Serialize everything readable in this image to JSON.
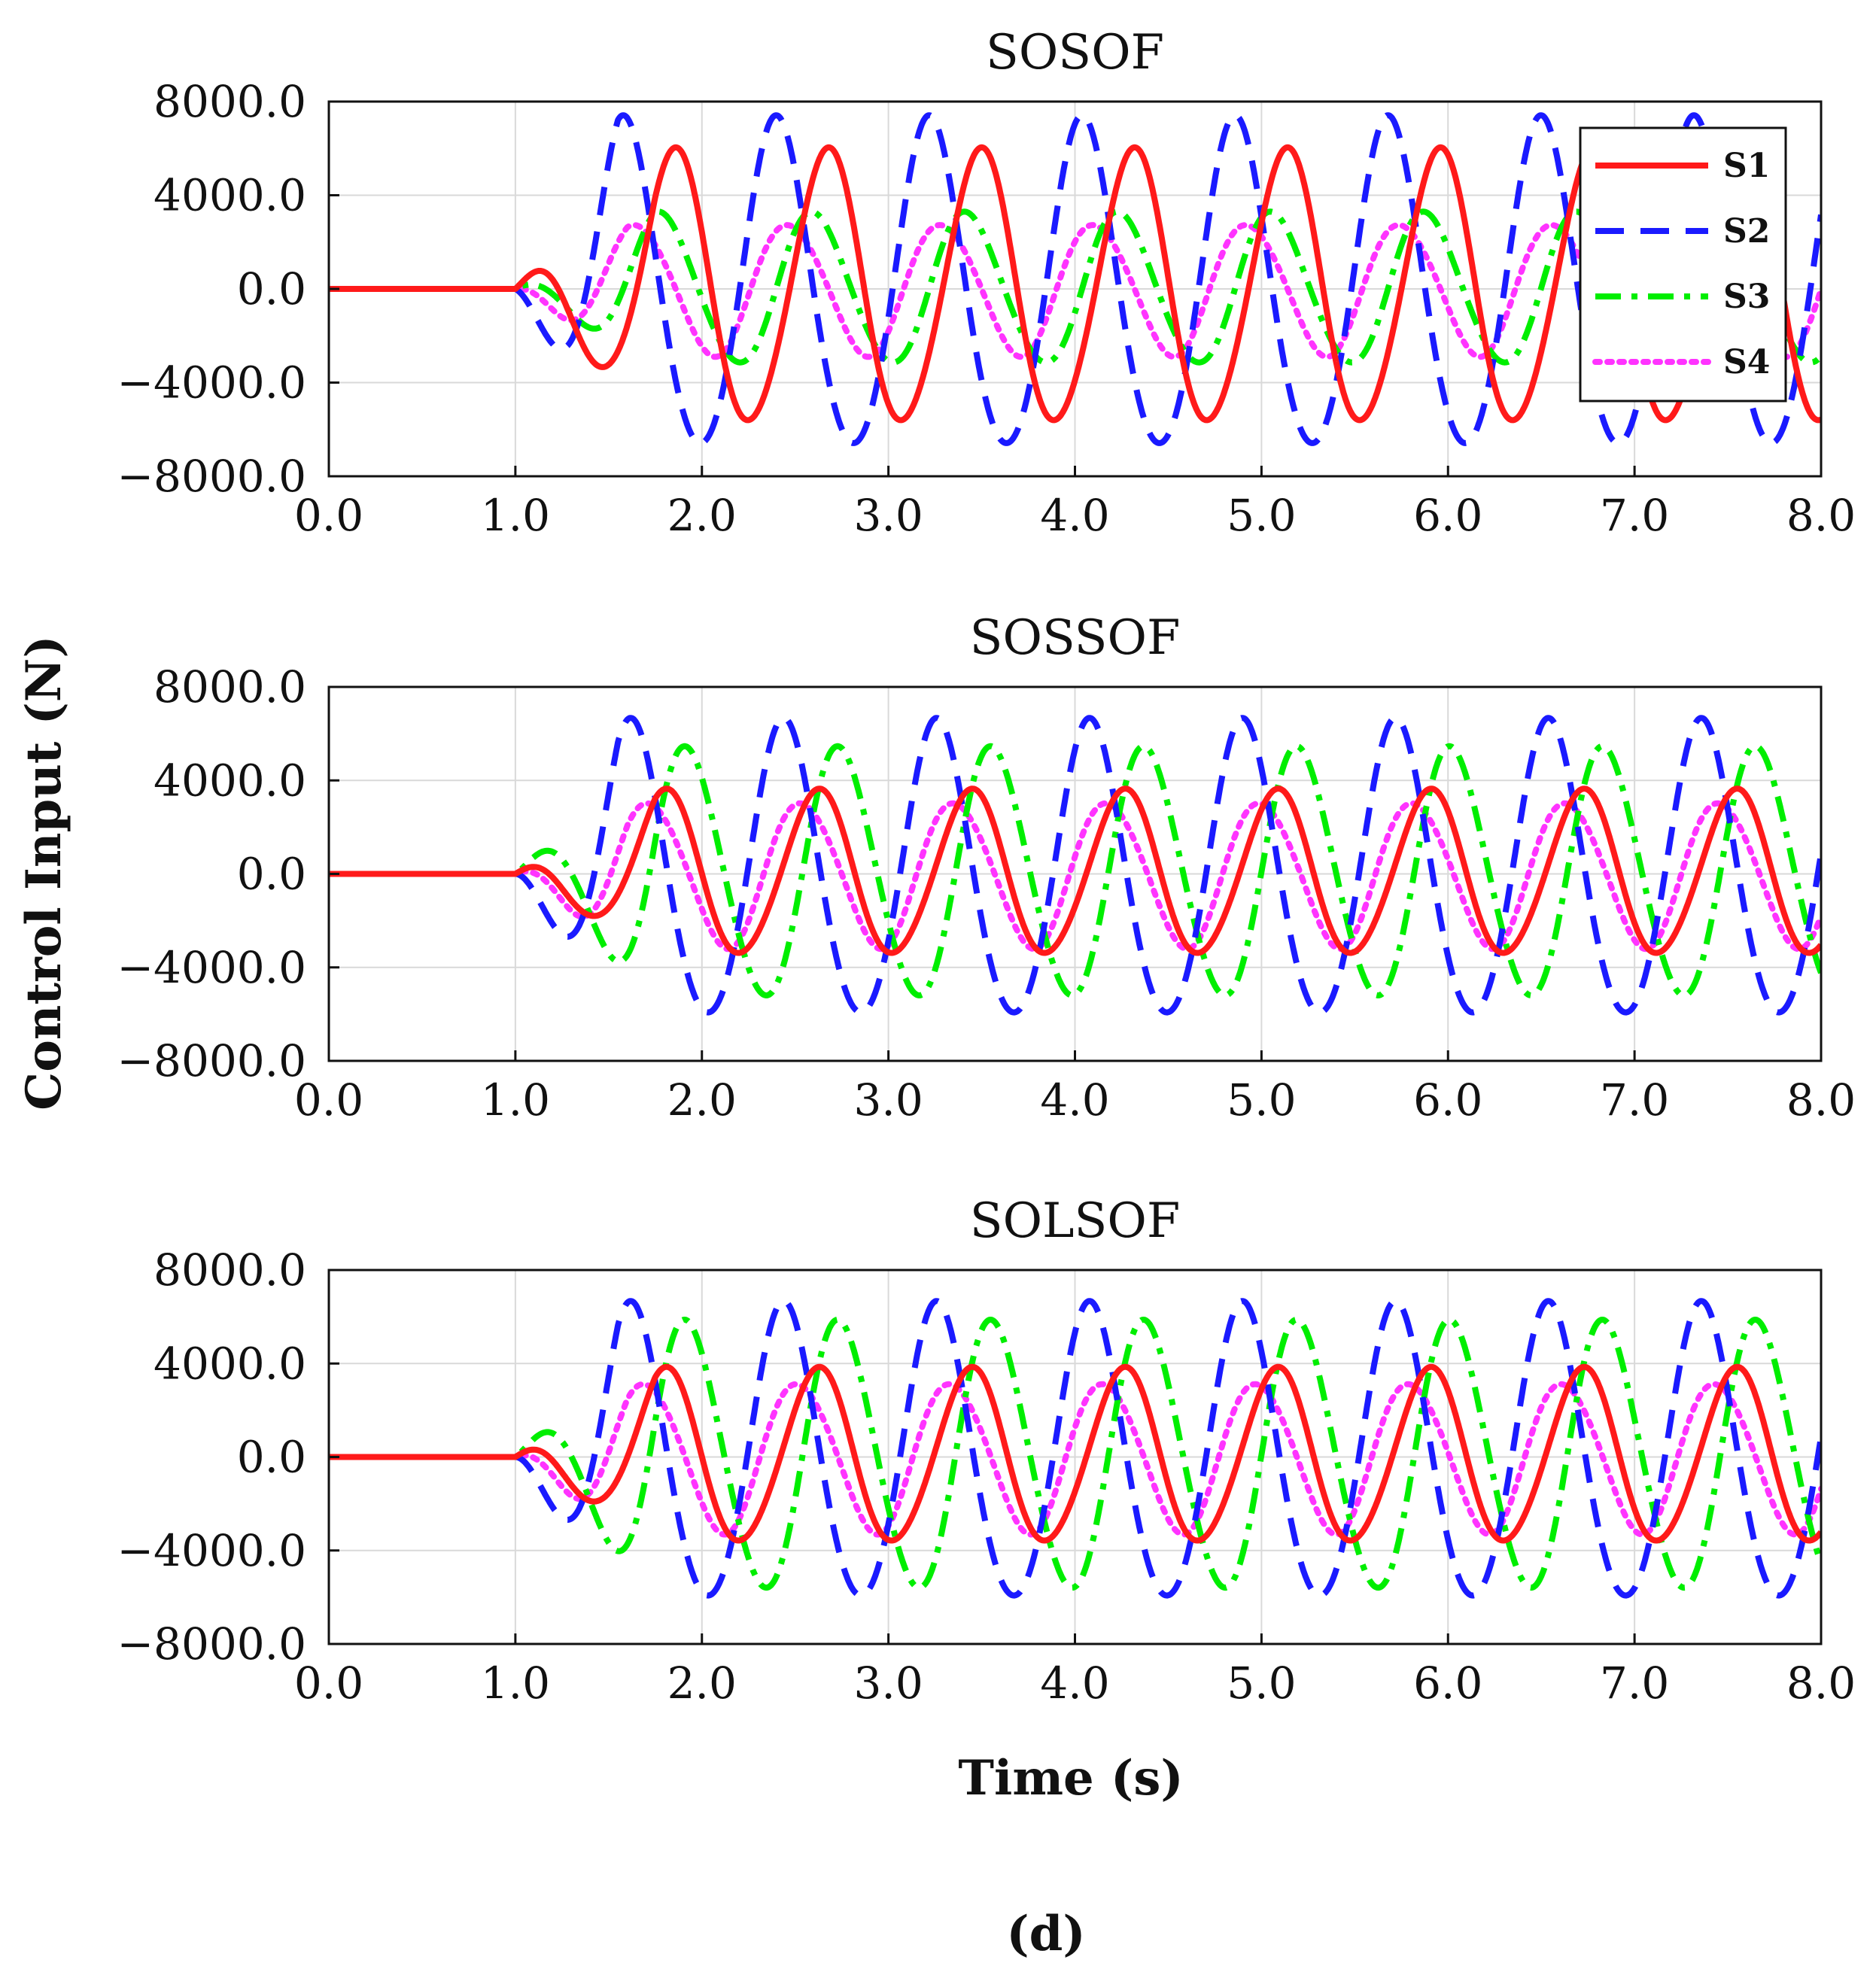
{
  "figure": {
    "ylabel": "Control Input (N)",
    "xlabel": "Time (s)",
    "panel_label": "(d)"
  },
  "colors": {
    "S1": "#ff1a1a",
    "S2": "#1a1aff",
    "S3": "#00ee00",
    "S4": "#ff33ff"
  },
  "chart_data": [
    {
      "type": "line",
      "title": "SOSOF",
      "xlim": [
        0,
        8
      ],
      "ylim": [
        -8000,
        8000
      ],
      "xticks": [
        0,
        1,
        2,
        3,
        4,
        5,
        6,
        7,
        8
      ],
      "xtick_labels": [
        "0.0",
        "1.0",
        "2.0",
        "3.0",
        "4.0",
        "5.0",
        "6.0",
        "7.0",
        "8.0"
      ],
      "yticks": [
        8000,
        4000,
        0,
        -4000,
        -8000
      ],
      "ytick_labels": [
        "8000.0",
        "4000.0",
        "0.0",
        "−4000.0",
        "−8000.0"
      ],
      "grid": true,
      "legend": {
        "position": "top-right",
        "entries": [
          "S1",
          "S2",
          "S3",
          "S4"
        ]
      },
      "series": [
        {
          "name": "S1",
          "style": "solid",
          "amplitude": 5800,
          "period": 0.82,
          "phase_time": 1.85,
          "onset": 1.0,
          "ramp": 0.75
        },
        {
          "name": "S2",
          "style": "dashed",
          "amplitude": 7000,
          "period": 0.82,
          "phase_time": 2.4,
          "onset": 1.0,
          "ramp": 0.55
        },
        {
          "name": "S3",
          "style": "dashdot",
          "amplitude": 3200,
          "period": 0.82,
          "phase_time": 1.78,
          "onset": 1.0,
          "ramp": 0.75
        },
        {
          "name": "S4",
          "style": "dotted",
          "amplitude": 2800,
          "period": 0.82,
          "phase_time": 1.65,
          "onset": 1.0,
          "ramp": 0.6
        }
      ]
    },
    {
      "type": "line",
      "title": "SOSSOF",
      "xlim": [
        0,
        8
      ],
      "ylim": [
        -8000,
        8000
      ],
      "xticks": [
        0,
        1,
        2,
        3,
        4,
        5,
        6,
        7,
        8
      ],
      "xtick_labels": [
        "0.0",
        "1.0",
        "2.0",
        "3.0",
        "4.0",
        "5.0",
        "6.0",
        "7.0",
        "8.0"
      ],
      "yticks": [
        8000,
        4000,
        0,
        -4000,
        -8000
      ],
      "ytick_labels": [
        "8000.0",
        "4000.0",
        "0.0",
        "−4000.0",
        "−8000.0"
      ],
      "grid": true,
      "series": [
        {
          "name": "S1",
          "style": "solid",
          "amplitude": 3500,
          "period": 0.82,
          "phase_time": 1.8,
          "onset": 1.0,
          "ramp": 0.75
        },
        {
          "name": "S2",
          "style": "dashed",
          "amplitude": 6300,
          "period": 0.82,
          "phase_time": 1.62,
          "onset": 1.0,
          "ramp": 0.55
        },
        {
          "name": "S3",
          "style": "dashdot",
          "amplitude": 5300,
          "period": 0.82,
          "phase_time": 1.92,
          "onset": 1.0,
          "ramp": 0.75
        },
        {
          "name": "S4",
          "style": "dotted",
          "amplitude": 3100,
          "period": 0.82,
          "phase_time": 1.72,
          "onset": 1.0,
          "ramp": 0.6
        }
      ]
    },
    {
      "type": "line",
      "title": "SOLSOF",
      "xlim": [
        0,
        8
      ],
      "ylim": [
        -8000,
        8000
      ],
      "xticks": [
        0,
        1,
        2,
        3,
        4,
        5,
        6,
        7,
        8
      ],
      "xtick_labels": [
        "0.0",
        "1.0",
        "2.0",
        "3.0",
        "4.0",
        "5.0",
        "6.0",
        "7.0",
        "8.0"
      ],
      "yticks": [
        8000,
        4000,
        0,
        -4000,
        -8000
      ],
      "ytick_labels": [
        "8000.0",
        "4000.0",
        "0.0",
        "−4000.0",
        "−8000.0"
      ],
      "grid": true,
      "series": [
        {
          "name": "S1",
          "style": "solid",
          "amplitude": 3700,
          "period": 0.82,
          "phase_time": 1.8,
          "onset": 1.0,
          "ramp": 0.75
        },
        {
          "name": "S2",
          "style": "dashed",
          "amplitude": 6300,
          "period": 0.82,
          "phase_time": 1.62,
          "onset": 1.0,
          "ramp": 0.55
        },
        {
          "name": "S3",
          "style": "dashdot",
          "amplitude": 5700,
          "period": 0.82,
          "phase_time": 1.92,
          "onset": 1.0,
          "ramp": 0.75
        },
        {
          "name": "S4",
          "style": "dotted",
          "amplitude": 3200,
          "period": 0.82,
          "phase_time": 1.7,
          "onset": 1.0,
          "ramp": 0.6
        }
      ]
    }
  ]
}
